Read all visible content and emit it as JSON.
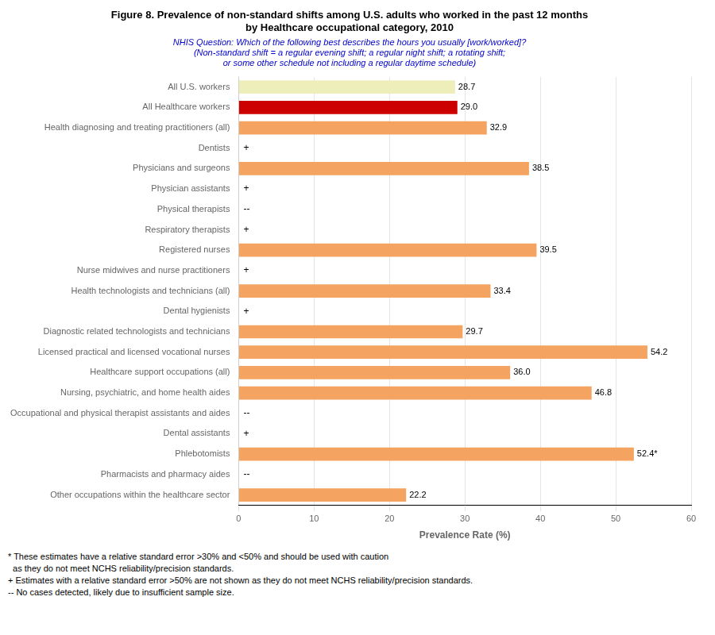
{
  "chart_data": {
    "type": "bar",
    "orientation": "horizontal",
    "title": [
      "Figure 8. Prevalence of non-standard shifts among U.S. adults who worked in the past 12 months",
      "by Healthcare occupational category, 2010"
    ],
    "subtitle": [
      "NHIS Question: Which of the following best describes the hours you usually [work/worked]?",
      "(Non-standard shift = a regular evening shift; a regular night shift; a rotating shift;",
      "or some other schedule not including a regular daytime schedule)"
    ],
    "categories": [
      "All U.S. workers",
      "All Healthcare workers",
      "Health diagnosing and treating practitioners (all)",
      "Dentists",
      "Physicians and surgeons",
      "Physician assistants",
      "Physical therapists",
      "Respiratory therapists",
      "Registered nurses",
      "Nurse midwives and nurse practitioners",
      "Health technologists and technicians (all)",
      "Dental hygienists",
      "Diagnostic related technologists and technicians",
      "Licensed practical and licensed vocational nurses",
      "Healthcare support occupations (all)",
      "Nursing, psychiatric, and home health aides",
      "Occupational and physical therapist assistants and aides",
      "Dental assistants",
      "Phlebotomists",
      "Pharmacists and pharmacy aides",
      "Other occupations within the healthcare sector"
    ],
    "values": [
      28.7,
      29.0,
      32.9,
      null,
      38.5,
      null,
      null,
      null,
      39.5,
      null,
      33.4,
      null,
      29.7,
      54.2,
      36.0,
      46.8,
      null,
      null,
      52.4,
      null,
      22.2
    ],
    "value_labels": [
      "28.7",
      "29.0",
      "32.9",
      null,
      "38.5",
      null,
      null,
      null,
      "39.5",
      null,
      "33.4",
      null,
      "29.7",
      "54.2",
      "36.0",
      "46.8",
      null,
      null,
      "52.4*",
      null,
      "22.2"
    ],
    "data_labels": true,
    "colors": [
      "#eeeebb",
      "#cc0000",
      "#f4a460",
      null,
      "#f4a460",
      null,
      null,
      null,
      "#f4a460",
      null,
      "#f4a460",
      null,
      "#f4a460",
      "#f4a460",
      "#f4a460",
      "#f4a460",
      null,
      null,
      "#f4a460",
      null,
      "#f4a460"
    ],
    "annotations": [
      {
        "category": "Dentists",
        "text": "+"
      },
      {
        "category": "Physician assistants",
        "text": "+"
      },
      {
        "category": "Physical therapists",
        "text": "--"
      },
      {
        "category": "Respiratory therapists",
        "text": "+"
      },
      {
        "category": "Nurse midwives and nurse practitioners",
        "text": "+"
      },
      {
        "category": "Dental hygienists",
        "text": "+"
      },
      {
        "category": "Occupational and physical therapist assistants and aides",
        "text": "--"
      },
      {
        "category": "Dental assistants",
        "text": "+"
      },
      {
        "category": "Pharmacists and pharmacy aides",
        "text": "--"
      }
    ],
    "xlabel": "Prevalence Rate (%)",
    "xlim": [
      0,
      60
    ],
    "xticks": [
      0,
      10,
      20,
      30,
      40,
      50,
      60
    ],
    "grid": true,
    "footnotes": [
      "* These estimates have a relative standard error >30% and <50% and should be used with caution",
      "  as they do not meet NCHS reliability/precision standards.",
      "+ Estimates with a relative standard error >50% are not shown as they do not meet NCHS reliability/precision standards.",
      "-- No cases detected, likely due to insufficient sample size."
    ]
  }
}
